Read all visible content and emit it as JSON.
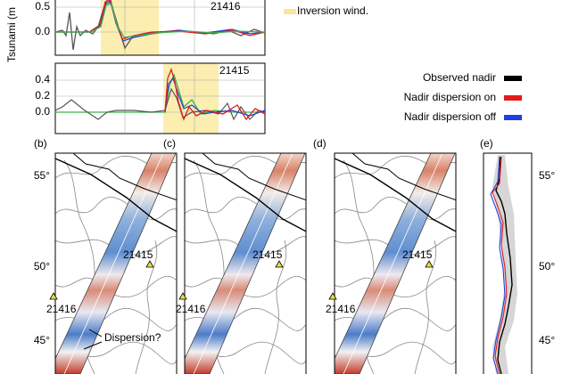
{
  "tsunami_panels": {
    "y_label": "Tsunami (m",
    "inversion_legend": "Inversion wind.",
    "upper": {
      "ticks": [
        "0.5",
        "0.0"
      ],
      "station": "21416"
    },
    "lower": {
      "ticks": [
        "0.4",
        "0.2",
        "0.0"
      ],
      "station": "21415"
    }
  },
  "legend": [
    {
      "label": "Observed nadir",
      "color": "#000000"
    },
    {
      "label": "Nadir dispersion on",
      "color": "#e41a1c"
    },
    {
      "label": "Nadir dispersion off",
      "color": "#1f3fe0"
    }
  ],
  "maps": [
    {
      "label": "(b)",
      "stations": [
        "21415",
        "21416"
      ],
      "annotation": "Dispersion?"
    },
    {
      "label": "(c)",
      "stations": [
        "21415",
        "21416"
      ]
    },
    {
      "label": "(d)",
      "stations": [
        "21415",
        "21416"
      ]
    }
  ],
  "profile": {
    "label": "(e)"
  },
  "latitude_ticks": [
    "55°",
    "50°",
    "45°"
  ]
}
